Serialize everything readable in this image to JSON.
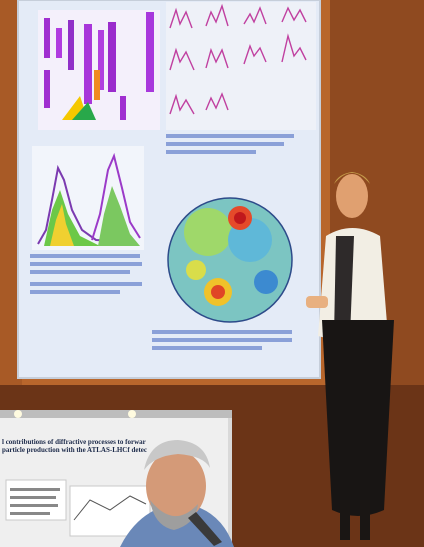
{
  "scene": {
    "description_tokens": [],
    "colors": {
      "wall": "#b8662c",
      "wall_dark": "#7a3a18",
      "screen": "#dfe6f4",
      "floor": "#5a2e14",
      "poster_bg": "#eaeaea",
      "heatmap_mid": "#7cc5c2"
    }
  },
  "poster_inset": {
    "title_line_1": "l contributions of diffractive processes to forwar",
    "title_line_2": "particle production with the ATLAS-LHCf detec"
  }
}
